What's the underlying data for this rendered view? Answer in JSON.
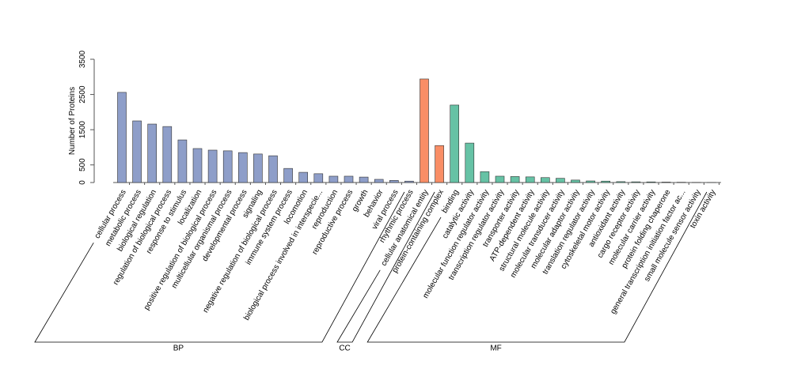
{
  "chart_data": {
    "type": "bar",
    "y_label": "Number of Proteins",
    "ylim": [
      0,
      3500
    ],
    "yticks": [
      0,
      500,
      1500,
      2500,
      3500
    ],
    "groups": [
      {
        "name": "BP",
        "color": "#8e9ec9",
        "categories": [
          "cellular process",
          "metabolic process",
          "biological regulation",
          "regulation of biological process",
          "response to stimulus",
          "localization",
          "positive regulation of biological process",
          "multicellular organismal process",
          "developmental process",
          "signaling",
          "negative regulation of biological process",
          "immune system process",
          "locomotion",
          "biological process involved in interspecie...",
          "reproduction",
          "reproductive process",
          "growth",
          "behavior",
          "viral process",
          "rhythmic process"
        ],
        "values": [
          2560,
          1750,
          1660,
          1590,
          1210,
          965,
          920,
          900,
          850,
          810,
          760,
          400,
          290,
          250,
          180,
          180,
          155,
          90,
          60,
          40
        ]
      },
      {
        "name": "CC",
        "color": "#f98e66",
        "categories": [
          "cellular anatomical entity",
          "protein-containing complex"
        ],
        "values": [
          2940,
          1050
        ]
      },
      {
        "name": "MF",
        "color": "#66c2a5",
        "categories": [
          "binding",
          "catalytic activity",
          "molecular function regulator activity",
          "transcription regulator activity",
          "transporter activity",
          "ATP-dependent activity",
          "structural molecule activity",
          "molecular transducer activity",
          "molecular adaptor activity",
          "translation regulator activity",
          "cytoskeletal motor activity",
          "antioxidant activity",
          "cargo receptor activity",
          "molecular carrier activity",
          "protein folding chaperone",
          "general transcription initiation factor ac...",
          "small molecule sensor activity",
          "toxin activity"
        ],
        "values": [
          2200,
          1120,
          310,
          180,
          170,
          160,
          140,
          120,
          70,
          45,
          40,
          25,
          20,
          18,
          12,
          8,
          5,
          3
        ]
      }
    ]
  }
}
